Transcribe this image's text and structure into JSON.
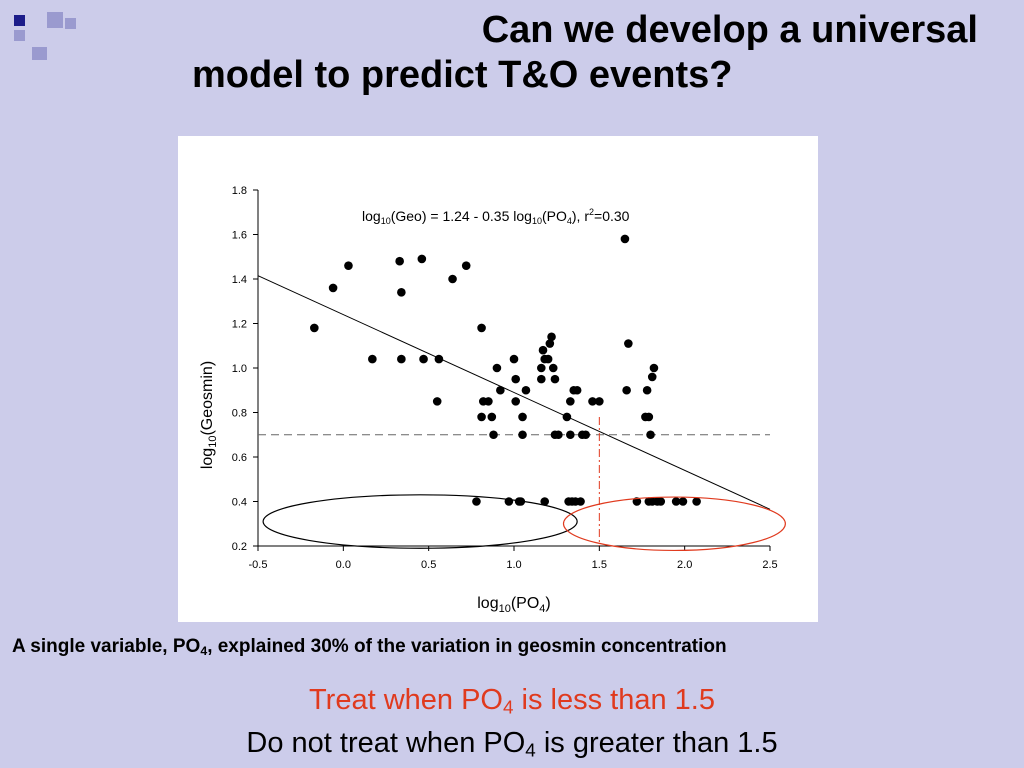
{
  "slide": {
    "title_line1": "Can we develop a universal",
    "title_line2": "model to predict T&O events?",
    "caption": {
      "prefix": "A single variable, PO",
      "sub": "4",
      "suffix": ", explained 30% of the variation in geosmin concentration"
    },
    "treat": {
      "prefix": "Treat when PO",
      "sub": "4",
      "suffix": " is less than 1.5"
    },
    "no_treat": {
      "prefix": "Do not treat when PO",
      "sub": "4",
      "suffix": " is greater than 1.5"
    },
    "colors": {
      "background": "#ccccea",
      "deco_dark": "#1c1c8a",
      "deco_light": "#9a9acf",
      "highlight": "#e03a1e"
    }
  },
  "chart_data": {
    "type": "scatter",
    "xlim": [
      -0.5,
      2.5
    ],
    "ylim": [
      0.2,
      1.8
    ],
    "x_ticks": [
      "-0.5",
      "0.0",
      "0.5",
      "1.0",
      "1.5",
      "2.0",
      "2.5"
    ],
    "y_ticks": [
      "0.2",
      "0.4",
      "0.6",
      "0.8",
      "1.0",
      "1.2",
      "1.4",
      "1.6",
      "1.8"
    ],
    "xlabel": {
      "prefix": "log",
      "sub": "10",
      "suffix": "(PO",
      "sub2": "4",
      "end": ")"
    },
    "ylabel": {
      "prefix": "log",
      "sub": "10",
      "suffix": "(Geosmin)"
    },
    "equation": {
      "p1": "log",
      "s1": "10",
      "p2": "(Geo) = 1.24 - 0.35 log",
      "s2": "10",
      "p3": "(PO",
      "s3": "4",
      "p4": "), r",
      "sup": "2",
      "p5": "=0.30"
    },
    "regression": {
      "intercept": 1.24,
      "slope": -0.35,
      "r2": 0.3
    },
    "threshold_y": 0.7,
    "threshold_x": 1.5,
    "points": [
      [
        -0.17,
        1.18
      ],
      [
        -0.06,
        1.36
      ],
      [
        0.03,
        1.46
      ],
      [
        0.17,
        1.04
      ],
      [
        0.33,
        1.48
      ],
      [
        0.34,
        1.34
      ],
      [
        0.34,
        1.04
      ],
      [
        0.46,
        1.49
      ],
      [
        0.47,
        1.04
      ],
      [
        0.56,
        1.04
      ],
      [
        0.55,
        0.85
      ],
      [
        0.64,
        1.4
      ],
      [
        0.72,
        1.46
      ],
      [
        0.78,
        0.4
      ],
      [
        0.81,
        1.18
      ],
      [
        0.81,
        0.78
      ],
      [
        0.82,
        0.85
      ],
      [
        0.85,
        0.85
      ],
      [
        0.87,
        0.78
      ],
      [
        0.88,
        0.7
      ],
      [
        0.9,
        1.0
      ],
      [
        0.92,
        0.9
      ],
      [
        0.97,
        0.4
      ],
      [
        1.0,
        1.04
      ],
      [
        1.01,
        0.85
      ],
      [
        1.01,
        0.95
      ],
      [
        1.03,
        0.4
      ],
      [
        1.04,
        0.4
      ],
      [
        1.05,
        0.78
      ],
      [
        1.05,
        0.7
      ],
      [
        1.07,
        0.9
      ],
      [
        1.16,
        1.0
      ],
      [
        1.16,
        0.95
      ],
      [
        1.17,
        1.08
      ],
      [
        1.18,
        1.04
      ],
      [
        1.18,
        0.4
      ],
      [
        1.2,
        1.04
      ],
      [
        1.21,
        1.11
      ],
      [
        1.22,
        1.14
      ],
      [
        1.23,
        1.0
      ],
      [
        1.24,
        0.95
      ],
      [
        1.24,
        0.7
      ],
      [
        1.26,
        0.7
      ],
      [
        1.31,
        0.78
      ],
      [
        1.32,
        0.4
      ],
      [
        1.33,
        0.85
      ],
      [
        1.33,
        0.7
      ],
      [
        1.34,
        0.4
      ],
      [
        1.35,
        0.9
      ],
      [
        1.36,
        0.4
      ],
      [
        1.37,
        0.9
      ],
      [
        1.39,
        0.4
      ],
      [
        1.4,
        0.7
      ],
      [
        1.42,
        0.7
      ],
      [
        1.46,
        0.85
      ],
      [
        1.5,
        0.85
      ],
      [
        1.65,
        1.58
      ],
      [
        1.66,
        0.9
      ],
      [
        1.67,
        1.11
      ],
      [
        1.72,
        0.4
      ],
      [
        1.77,
        0.78
      ],
      [
        1.78,
        0.9
      ],
      [
        1.79,
        0.4
      ],
      [
        1.79,
        0.78
      ],
      [
        1.8,
        0.7
      ],
      [
        1.81,
        0.96
      ],
      [
        1.81,
        0.4
      ],
      [
        1.82,
        1.0
      ],
      [
        1.84,
        0.4
      ],
      [
        1.86,
        0.4
      ],
      [
        1.95,
        0.4
      ],
      [
        1.99,
        0.4
      ],
      [
        2.07,
        0.4
      ]
    ],
    "regions": [
      {
        "cx": 0.45,
        "cy": 0.31,
        "rx": 0.92,
        "ry": 0.12,
        "color": "#000000"
      },
      {
        "cx": 1.94,
        "cy": 0.3,
        "rx": 0.65,
        "ry": 0.12,
        "color": "#e03a1e"
      }
    ]
  }
}
